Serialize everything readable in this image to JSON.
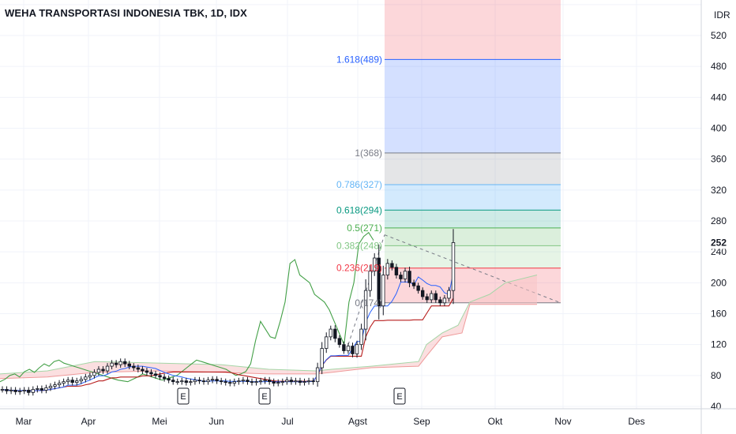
{
  "header": {
    "title": "WEHA TRANSPORTASI INDONESIA TBK, 1D, IDX"
  },
  "chart_data": {
    "type": "candlestick",
    "title": "WEHA TRANSPORTASI INDONESIA TBK, 1D, IDX",
    "currency_label": "IDR",
    "ylim": [
      40,
      560
    ],
    "y_ticks": [
      40,
      80,
      120,
      160,
      200,
      240,
      280,
      320,
      360,
      400,
      440,
      480,
      520,
      560
    ],
    "x_ticks": [
      "Mar",
      "Apr",
      "Mei",
      "Jun",
      "Jul",
      "Agst",
      "Sep",
      "Okt",
      "Nov",
      "Des"
    ],
    "last_price": {
      "value": 252,
      "label": "252",
      "color": "#131722"
    },
    "fib_levels": [
      {
        "ratio": "1.618",
        "price": 489,
        "label": "1.618(489)",
        "color": "#2962ff"
      },
      {
        "ratio": "1",
        "price": 368,
        "label": "1(368)",
        "color": "#787b86"
      },
      {
        "ratio": "0.786",
        "price": 327,
        "label": "0.786(327)",
        "color": "#64b5f6"
      },
      {
        "ratio": "0.618",
        "price": 294,
        "label": "0.618(294)",
        "color": "#089981"
      },
      {
        "ratio": "0.5",
        "price": 271,
        "label": "0.5(271)",
        "color": "#4caf50"
      },
      {
        "ratio": "0.382",
        "price": 248,
        "label": "0.382(248)",
        "color": "#81c784"
      },
      {
        "ratio": "0.236",
        "price": 219,
        "label": "0.236(219)",
        "color": "#f23645"
      },
      {
        "ratio": "0",
        "price": 174,
        "label": "0(174)",
        "color": "#787b86"
      }
    ],
    "earnings_markers": [
      {
        "label": "E",
        "month": "Mei"
      },
      {
        "label": "E",
        "month": "Jul"
      },
      {
        "label": "E",
        "month": "Agst"
      }
    ],
    "candles_close": [
      62,
      60,
      61,
      59,
      60,
      61,
      58,
      62,
      63,
      61,
      64,
      66,
      68,
      70,
      72,
      74,
      71,
      73,
      75,
      78,
      80,
      84,
      88,
      86,
      92,
      96,
      94,
      98,
      95,
      92,
      90,
      88,
      86,
      84,
      82,
      80,
      78,
      76,
      74,
      72,
      72,
      73,
      71,
      72,
      74,
      73,
      72,
      74,
      75,
      73,
      72,
      71,
      70,
      72,
      73,
      74,
      72,
      71,
      72,
      73,
      74,
      72,
      70,
      71,
      72,
      74,
      72,
      73,
      71,
      72,
      73,
      72,
      90,
      115,
      130,
      140,
      128,
      120,
      112,
      118,
      108,
      120,
      140,
      190,
      215,
      232,
      170,
      210,
      225,
      220,
      210,
      205,
      215,
      200,
      196,
      190,
      182,
      178,
      186,
      178,
      174,
      180,
      190,
      252
    ],
    "series": [
      {
        "name": "lagging line",
        "color": "#43a047",
        "values": [
          72,
          75,
          80,
          82,
          78,
          85,
          88,
          84,
          90,
          95,
          92,
          98,
          100,
          96,
          94,
          92,
          90,
          88,
          86,
          84,
          82,
          80,
          78,
          76,
          74,
          73,
          72,
          75,
          78,
          82,
          80,
          78,
          76,
          74,
          76,
          78,
          80,
          85,
          90,
          95,
          100,
          98,
          96,
          94,
          92,
          90,
          88,
          84,
          80,
          82,
          85,
          95,
          125,
          150,
          140,
          130,
          128,
          150,
          175,
          225,
          230,
          210,
          205,
          200,
          185,
          180,
          175,
          165,
          150,
          135,
          120,
          175,
          200,
          250,
          260,
          265,
          255
        ]
      }
    ]
  }
}
